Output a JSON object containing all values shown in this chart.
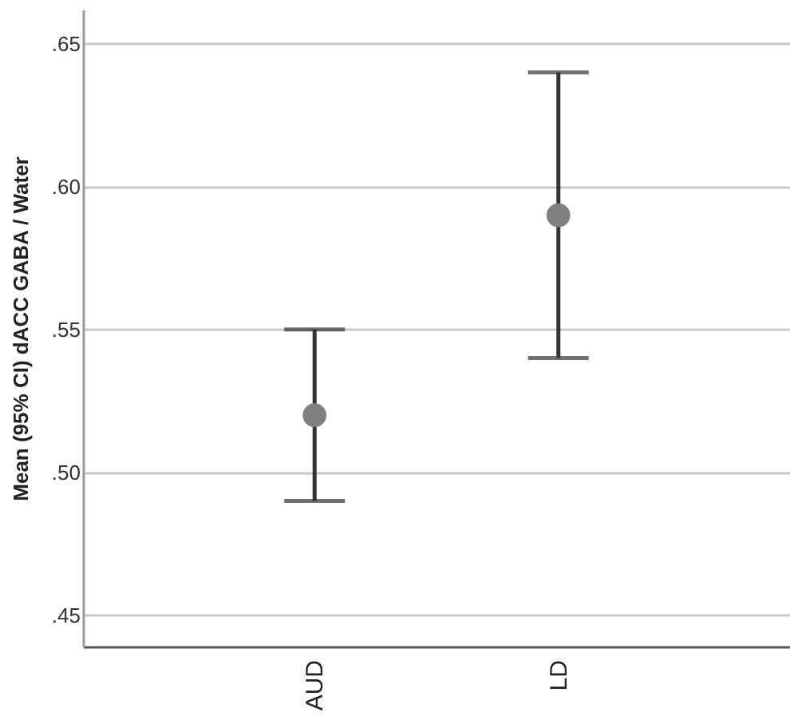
{
  "chart_data": {
    "type": "scatter",
    "ylabel": "Mean (95% CI) dACC GABA / Water",
    "categories": [
      "AUD",
      "LD"
    ],
    "series": [
      {
        "color": "#808080",
        "values": [
          0.52,
          0.59
        ],
        "errors": [
          [
            0.49,
            0.55
          ],
          [
            0.54,
            0.64
          ]
        ]
      }
    ],
    "ylim": [
      0.439,
      0.662
    ],
    "yticks": [
      {
        "value": 0.45,
        "label": ".45"
      },
      {
        "value": 0.5,
        "label": ".50"
      },
      {
        "value": 0.55,
        "label": ".55"
      },
      {
        "value": 0.6,
        "label": ".60"
      },
      {
        "value": 0.65,
        "label": ".65"
      }
    ],
    "grid": "y",
    "marker": "circle"
  }
}
